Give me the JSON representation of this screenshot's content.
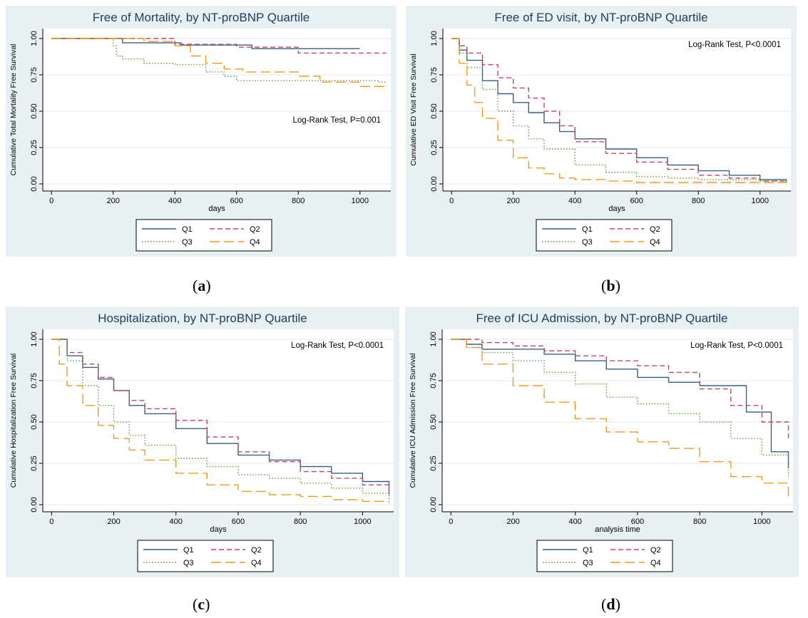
{
  "series_styles": [
    {
      "name": "Q1",
      "color": "#3a5f83",
      "dash": ""
    },
    {
      "name": "Q2",
      "color": "#c0475f",
      "dash": "7,4"
    },
    {
      "name": "Q3",
      "color": "#5f9a3c",
      "dash": "1.5,2.5"
    },
    {
      "name": "Q4",
      "color": "#f39a1e",
      "dash": "14,6"
    }
  ],
  "chart_data": [
    {
      "type": "line",
      "step": true,
      "caption": {
        "open": "(",
        "letter": "a",
        "close": ")"
      },
      "title": "Free of Mortality, by NT-proBNP Quartile",
      "xlabel": "days",
      "ylabel": "Cumulative Total Mortality Free Survival",
      "annotation": "Log-Rank Test, P=0.001",
      "xlim": [
        0,
        1100
      ],
      "ylim": [
        0,
        1
      ],
      "xticks": [
        0,
        200,
        400,
        600,
        800,
        1000
      ],
      "yticks": [
        "0.00",
        "0.25",
        "0.50",
        "0.75",
        "1.00"
      ],
      "grid": true,
      "legend": "bottom",
      "series": [
        {
          "name": "Q1",
          "x": [
            0,
            230,
            420,
            650,
            1000
          ],
          "y": [
            1,
            0.97,
            0.955,
            0.93,
            0.93
          ]
        },
        {
          "name": "Q2",
          "x": [
            0,
            400,
            600,
            800,
            1085
          ],
          "y": [
            1,
            0.96,
            0.94,
            0.9,
            0.9
          ]
        },
        {
          "name": "Q3",
          "x": [
            0,
            200,
            210,
            230,
            300,
            400,
            500,
            560,
            600,
            1060,
            1085
          ],
          "y": [
            1,
            0.95,
            0.88,
            0.86,
            0.83,
            0.82,
            0.77,
            0.74,
            0.71,
            0.7,
            0.7
          ]
        },
        {
          "name": "Q4",
          "x": [
            0,
            300,
            400,
            450,
            500,
            560,
            620,
            800,
            870,
            1000,
            1085
          ],
          "y": [
            1,
            0.98,
            0.95,
            0.88,
            0.83,
            0.79,
            0.77,
            0.74,
            0.7,
            0.67,
            0.67
          ]
        }
      ]
    },
    {
      "type": "line",
      "step": true,
      "caption": {
        "open": "(",
        "letter": "b",
        "close": ")"
      },
      "title": "Free of ED visit, by NT-proBNP Quartile",
      "xlabel": "days",
      "ylabel": "Cumulative ED Visit Free Survival",
      "annotation": "Log-Rank Test, P<0.0001",
      "xlim": [
        0,
        1100
      ],
      "ylim": [
        0,
        1
      ],
      "xticks": [
        0,
        200,
        400,
        600,
        800,
        1000
      ],
      "yticks": [
        "0.00",
        "0.25",
        "0.50",
        "0.75",
        "1.00"
      ],
      "grid": true,
      "legend": "bottom",
      "series": [
        {
          "name": "Q1",
          "x": [
            0,
            25,
            50,
            100,
            150,
            200,
            250,
            300,
            350,
            400,
            500,
            600,
            700,
            800,
            900,
            1000,
            1085
          ],
          "y": [
            1,
            0.92,
            0.85,
            0.71,
            0.62,
            0.56,
            0.49,
            0.42,
            0.36,
            0.31,
            0.24,
            0.18,
            0.13,
            0.09,
            0.06,
            0.03,
            0.01
          ]
        },
        {
          "name": "Q2",
          "x": [
            0,
            25,
            50,
            100,
            150,
            200,
            250,
            300,
            350,
            400,
            500,
            600,
            700,
            800,
            900,
            1000,
            1085
          ],
          "y": [
            1,
            0.95,
            0.9,
            0.82,
            0.73,
            0.66,
            0.59,
            0.5,
            0.4,
            0.29,
            0.21,
            0.15,
            0.1,
            0.06,
            0.04,
            0.02,
            0.01
          ]
        },
        {
          "name": "Q3",
          "x": [
            0,
            25,
            50,
            100,
            150,
            200,
            250,
            300,
            400,
            500,
            600,
            700,
            800,
            1000,
            1085
          ],
          "y": [
            1,
            0.9,
            0.8,
            0.65,
            0.5,
            0.4,
            0.31,
            0.24,
            0.13,
            0.08,
            0.05,
            0.04,
            0.03,
            0.02,
            0.01
          ]
        },
        {
          "name": "Q4",
          "x": [
            0,
            25,
            50,
            75,
            100,
            150,
            200,
            250,
            300,
            350,
            400,
            500,
            600,
            800,
            1085
          ],
          "y": [
            1,
            0.83,
            0.68,
            0.56,
            0.45,
            0.3,
            0.18,
            0.11,
            0.07,
            0.04,
            0.03,
            0.02,
            0.01,
            0.01,
            0.01
          ]
        }
      ]
    },
    {
      "type": "line",
      "step": true,
      "caption": {
        "open": "(",
        "letter": "c",
        "close": ")"
      },
      "title": "Hospitalization, by NT-proBNP Quartile",
      "xlabel": "days",
      "ylabel": "Cumulative Hospitalization Free Survival",
      "annotation": "Log-Rank Test, P<0.0001",
      "xlim": [
        0,
        1100
      ],
      "ylim": [
        0,
        1
      ],
      "xticks": [
        0,
        200,
        400,
        600,
        800,
        1000
      ],
      "yticks": [
        "0.00",
        "0.25",
        "0.50",
        "0.75",
        "1.00"
      ],
      "grid": true,
      "legend": "bottom",
      "series": [
        {
          "name": "Q1",
          "x": [
            0,
            50,
            100,
            150,
            200,
            250,
            300,
            400,
            500,
            600,
            700,
            800,
            900,
            1000,
            1085
          ],
          "y": [
            1,
            0.9,
            0.83,
            0.76,
            0.69,
            0.6,
            0.55,
            0.46,
            0.37,
            0.3,
            0.27,
            0.23,
            0.19,
            0.14,
            0.06
          ]
        },
        {
          "name": "Q2",
          "x": [
            0,
            50,
            100,
            150,
            200,
            250,
            300,
            400,
            500,
            600,
            700,
            800,
            900,
            1000,
            1085
          ],
          "y": [
            1,
            0.92,
            0.85,
            0.77,
            0.69,
            0.63,
            0.58,
            0.51,
            0.41,
            0.32,
            0.26,
            0.2,
            0.16,
            0.12,
            0.07
          ]
        },
        {
          "name": "Q3",
          "x": [
            0,
            50,
            100,
            150,
            200,
            250,
            300,
            400,
            500,
            600,
            700,
            800,
            900,
            1000,
            1085
          ],
          "y": [
            1,
            0.87,
            0.72,
            0.6,
            0.5,
            0.42,
            0.36,
            0.28,
            0.23,
            0.18,
            0.16,
            0.13,
            0.1,
            0.07,
            0.03
          ]
        },
        {
          "name": "Q4",
          "x": [
            0,
            25,
            50,
            100,
            150,
            200,
            250,
            300,
            400,
            500,
            600,
            700,
            800,
            900,
            1000,
            1085
          ],
          "y": [
            1,
            0.85,
            0.72,
            0.6,
            0.48,
            0.4,
            0.33,
            0.27,
            0.19,
            0.12,
            0.08,
            0.06,
            0.05,
            0.03,
            0.02,
            0.01
          ]
        }
      ]
    },
    {
      "type": "line",
      "step": true,
      "caption": {
        "open": "(",
        "letter": "d",
        "close": ")"
      },
      "title": "Free of ICU Admission, by NT-proBNP Quartile",
      "xlabel": "analysis time",
      "ylabel": "Cumulative ICU Admission Free Survival",
      "annotation": "Log-Rank Test, P<0.0001",
      "xlim": [
        0,
        1100
      ],
      "ylim": [
        0,
        1
      ],
      "xticks": [
        0,
        200,
        400,
        600,
        800,
        1000
      ],
      "yticks": [
        "0.00",
        "0.25",
        "0.50",
        "0.75",
        "1.00"
      ],
      "grid": true,
      "legend": "bottom",
      "series": [
        {
          "name": "Q1",
          "x": [
            0,
            50,
            100,
            300,
            400,
            500,
            600,
            700,
            800,
            950,
            1030,
            1085
          ],
          "y": [
            1,
            0.97,
            0.94,
            0.91,
            0.87,
            0.82,
            0.77,
            0.74,
            0.72,
            0.56,
            0.32,
            0.22
          ]
        },
        {
          "name": "Q2",
          "x": [
            0,
            100,
            200,
            300,
            400,
            500,
            600,
            700,
            800,
            900,
            1000,
            1085
          ],
          "y": [
            1,
            0.98,
            0.96,
            0.93,
            0.9,
            0.87,
            0.84,
            0.8,
            0.7,
            0.6,
            0.5,
            0.4
          ]
        },
        {
          "name": "Q3",
          "x": [
            0,
            50,
            100,
            200,
            300,
            400,
            500,
            600,
            700,
            800,
            900,
            1000,
            1085
          ],
          "y": [
            1,
            0.95,
            0.92,
            0.87,
            0.8,
            0.73,
            0.65,
            0.61,
            0.55,
            0.5,
            0.4,
            0.3,
            0.16
          ]
        },
        {
          "name": "Q4",
          "x": [
            0,
            50,
            100,
            200,
            300,
            400,
            500,
            600,
            700,
            800,
            900,
            1000,
            1085
          ],
          "y": [
            1,
            0.95,
            0.85,
            0.72,
            0.62,
            0.52,
            0.44,
            0.38,
            0.34,
            0.26,
            0.17,
            0.13,
            0.05
          ]
        }
      ]
    }
  ]
}
